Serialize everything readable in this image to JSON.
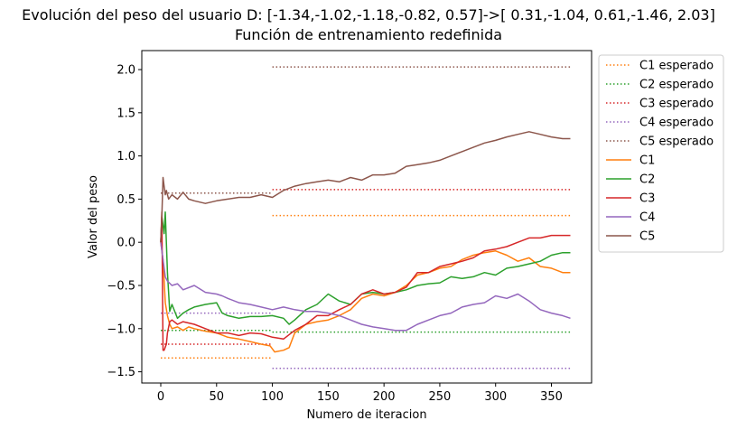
{
  "chart_data": {
    "type": "line",
    "title": "Evolución del peso del usuario D: [-1.34,-1.02,-1.18,-0.82, 0.57]->[ 0.31,-1.04, 0.61,-1.46, 2.03]",
    "subtitle": "Función de entrenamiento redefinida",
    "xlabel": "Numero de iteracion",
    "ylabel": "Valor del peso",
    "xlim": [
      -17,
      386
    ],
    "ylim": [
      -1.63,
      2.22
    ],
    "xticks": [
      0,
      50,
      100,
      150,
      200,
      250,
      300,
      350
    ],
    "yticks": [
      -1.5,
      -1.0,
      -0.5,
      0.0,
      0.5,
      1.0,
      1.5,
      2.0
    ],
    "xtick_labels": [
      "0",
      "50",
      "100",
      "150",
      "200",
      "250",
      "300",
      "350"
    ],
    "ytick_labels": [
      "−1.5",
      "−1.0",
      "−0.5",
      "0.0",
      "0.5",
      "1.0",
      "1.5",
      "2.0"
    ],
    "grid": false,
    "legend_position": "outside-right",
    "expected": [
      {
        "name": "C1 esperado",
        "color": "#ff7f0e",
        "segments": [
          {
            "x": [
              0,
              100
            ],
            "y": -1.34
          },
          {
            "x": [
              100,
              367
            ],
            "y": 0.31
          }
        ]
      },
      {
        "name": "C2 esperado",
        "color": "#2ca02c",
        "segments": [
          {
            "x": [
              0,
              100
            ],
            "y": -1.02
          },
          {
            "x": [
              100,
              367
            ],
            "y": -1.04
          }
        ]
      },
      {
        "name": "C3 esperado",
        "color": "#d62728",
        "segments": [
          {
            "x": [
              0,
              100
            ],
            "y": -1.18
          },
          {
            "x": [
              100,
              367
            ],
            "y": 0.61
          }
        ]
      },
      {
        "name": "C4 esperado",
        "color": "#9467bd",
        "segments": [
          {
            "x": [
              0,
              100
            ],
            "y": -0.82
          },
          {
            "x": [
              100,
              367
            ],
            "y": -1.46
          }
        ]
      },
      {
        "name": "C5 esperado",
        "color": "#8c564b",
        "segments": [
          {
            "x": [
              0,
              100
            ],
            "y": 0.57
          },
          {
            "x": [
              100,
              367
            ],
            "y": 2.03
          }
        ]
      }
    ],
    "series": [
      {
        "name": "C1",
        "color": "#ff7f0e",
        "x": [
          0,
          2,
          4,
          6,
          8,
          10,
          15,
          20,
          25,
          30,
          40,
          50,
          60,
          70,
          80,
          90,
          98,
          102,
          110,
          115,
          120,
          130,
          140,
          150,
          160,
          170,
          180,
          190,
          200,
          210,
          220,
          230,
          240,
          250,
          260,
          270,
          280,
          290,
          300,
          310,
          320,
          330,
          340,
          350,
          360,
          367
        ],
        "y": [
          0.0,
          -0.2,
          -0.7,
          -0.85,
          -0.95,
          -1.0,
          -0.98,
          -1.02,
          -0.98,
          -1.0,
          -1.03,
          -1.05,
          -1.1,
          -1.12,
          -1.15,
          -1.18,
          -1.2,
          -1.27,
          -1.25,
          -1.22,
          -1.05,
          -0.95,
          -0.92,
          -0.9,
          -0.85,
          -0.78,
          -0.65,
          -0.6,
          -0.62,
          -0.58,
          -0.5,
          -0.38,
          -0.35,
          -0.3,
          -0.28,
          -0.2,
          -0.15,
          -0.12,
          -0.1,
          -0.15,
          -0.22,
          -0.18,
          -0.28,
          -0.3,
          -0.35,
          -0.35
        ]
      },
      {
        "name": "C2",
        "color": "#2ca02c",
        "x": [
          0,
          1,
          3,
          4,
          6,
          8,
          10,
          15,
          20,
          25,
          30,
          40,
          50,
          55,
          60,
          70,
          80,
          90,
          100,
          110,
          115,
          120,
          130,
          140,
          150,
          160,
          170,
          180,
          190,
          200,
          210,
          220,
          230,
          240,
          250,
          260,
          270,
          280,
          290,
          300,
          310,
          320,
          330,
          340,
          350,
          360,
          367
        ],
        "y": [
          0.0,
          0.3,
          0.1,
          0.35,
          -0.35,
          -0.8,
          -0.72,
          -0.88,
          -0.82,
          -0.78,
          -0.75,
          -0.72,
          -0.7,
          -0.82,
          -0.85,
          -0.88,
          -0.86,
          -0.86,
          -0.85,
          -0.88,
          -0.95,
          -0.9,
          -0.78,
          -0.72,
          -0.6,
          -0.68,
          -0.72,
          -0.6,
          -0.58,
          -0.6,
          -0.58,
          -0.55,
          -0.5,
          -0.48,
          -0.47,
          -0.4,
          -0.42,
          -0.4,
          -0.35,
          -0.38,
          -0.3,
          -0.28,
          -0.25,
          -0.22,
          -0.15,
          -0.12,
          -0.12
        ]
      },
      {
        "name": "C3",
        "color": "#d62728",
        "x": [
          0,
          1,
          2,
          3,
          5,
          6,
          8,
          10,
          15,
          20,
          30,
          40,
          50,
          60,
          70,
          80,
          90,
          100,
          110,
          120,
          130,
          140,
          150,
          160,
          170,
          180,
          190,
          200,
          210,
          220,
          230,
          240,
          250,
          260,
          270,
          280,
          290,
          300,
          310,
          320,
          330,
          340,
          350,
          360,
          367
        ],
        "y": [
          0.0,
          0.35,
          -1.25,
          -1.25,
          -1.18,
          -1.05,
          -0.92,
          -0.9,
          -0.95,
          -0.92,
          -0.95,
          -1.0,
          -1.05,
          -1.05,
          -1.08,
          -1.05,
          -1.06,
          -1.1,
          -1.12,
          -1.02,
          -0.95,
          -0.85,
          -0.85,
          -0.78,
          -0.72,
          -0.6,
          -0.55,
          -0.6,
          -0.58,
          -0.52,
          -0.35,
          -0.35,
          -0.28,
          -0.25,
          -0.22,
          -0.18,
          -0.1,
          -0.08,
          -0.05,
          0.0,
          0.05,
          0.05,
          0.08,
          0.08,
          0.08
        ]
      },
      {
        "name": "C4",
        "color": "#9467bd",
        "x": [
          0,
          2,
          4,
          6,
          10,
          15,
          20,
          30,
          40,
          50,
          55,
          60,
          70,
          80,
          90,
          100,
          110,
          120,
          130,
          140,
          150,
          160,
          170,
          180,
          190,
          200,
          210,
          220,
          230,
          240,
          250,
          260,
          270,
          280,
          290,
          300,
          310,
          320,
          330,
          340,
          350,
          360,
          367
        ],
        "y": [
          0.0,
          -0.2,
          -0.4,
          -0.45,
          -0.5,
          -0.48,
          -0.55,
          -0.5,
          -0.58,
          -0.6,
          -0.62,
          -0.65,
          -0.7,
          -0.72,
          -0.75,
          -0.78,
          -0.75,
          -0.78,
          -0.8,
          -0.8,
          -0.82,
          -0.85,
          -0.9,
          -0.95,
          -0.98,
          -1.0,
          -1.02,
          -1.02,
          -0.95,
          -0.9,
          -0.85,
          -0.82,
          -0.75,
          -0.72,
          -0.7,
          -0.62,
          -0.65,
          -0.6,
          -0.68,
          -0.78,
          -0.82,
          -0.85,
          -0.88
        ]
      },
      {
        "name": "C5",
        "color": "#8c564b",
        "x": [
          0,
          1,
          2,
          3,
          4,
          5,
          7,
          10,
          15,
          20,
          25,
          30,
          40,
          50,
          60,
          70,
          80,
          90,
          100,
          110,
          120,
          130,
          140,
          150,
          160,
          170,
          180,
          190,
          200,
          210,
          220,
          230,
          240,
          250,
          260,
          270,
          280,
          290,
          300,
          310,
          320,
          330,
          340,
          350,
          360,
          367
        ],
        "y": [
          0.0,
          0.3,
          0.75,
          0.65,
          0.55,
          0.6,
          0.5,
          0.55,
          0.5,
          0.58,
          0.5,
          0.48,
          0.45,
          0.48,
          0.5,
          0.52,
          0.52,
          0.55,
          0.52,
          0.6,
          0.65,
          0.68,
          0.7,
          0.72,
          0.7,
          0.75,
          0.72,
          0.78,
          0.78,
          0.8,
          0.88,
          0.9,
          0.92,
          0.95,
          1.0,
          1.05,
          1.1,
          1.15,
          1.18,
          1.22,
          1.25,
          1.28,
          1.25,
          1.22,
          1.2,
          1.2
        ]
      }
    ]
  }
}
